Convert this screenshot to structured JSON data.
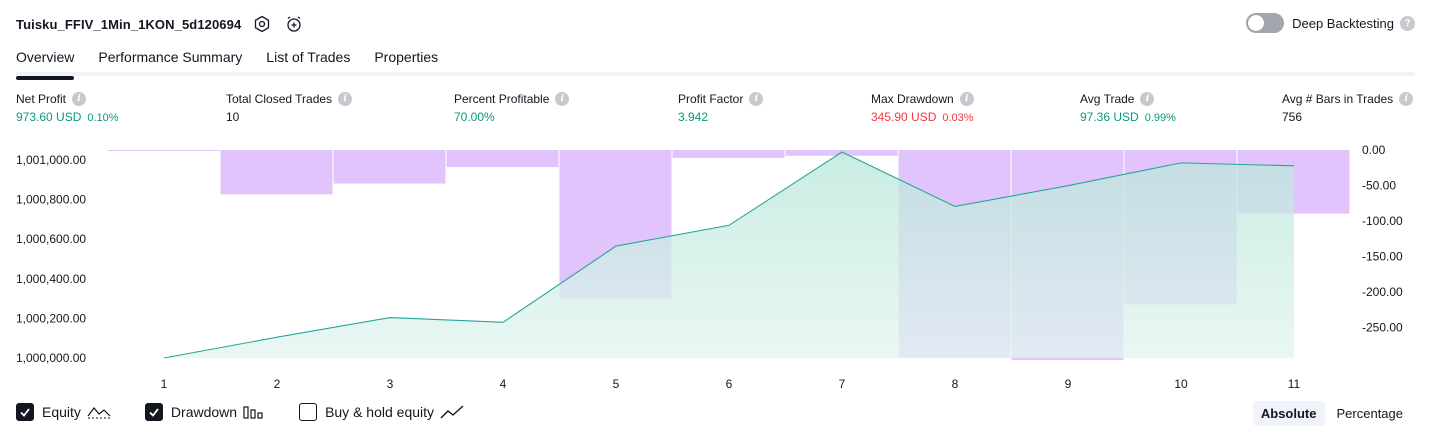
{
  "header": {
    "strategy_name": "Tuisku_FFIV_1Min_1KON_5d120694",
    "settings_icon": "hexagon-settings-icon",
    "alert_icon": "alarm-clock-add-icon",
    "deep_backtesting_label": "Deep Backtesting",
    "deep_backtesting_enabled": false
  },
  "tabs": [
    {
      "label": "Overview",
      "active": true
    },
    {
      "label": "Performance Summary",
      "active": false
    },
    {
      "label": "List of Trades",
      "active": false
    },
    {
      "label": "Properties",
      "active": false
    }
  ],
  "metrics": [
    {
      "label": "Net Profit",
      "value": "973.60 USD",
      "sub": "0.10%",
      "color": "green"
    },
    {
      "label": "Total Closed Trades",
      "value": "10",
      "sub": "",
      "color": "dark"
    },
    {
      "label": "Percent Profitable",
      "value": "70.00%",
      "sub": "",
      "color": "green"
    },
    {
      "label": "Profit Factor",
      "value": "3.942",
      "sub": "",
      "color": "green"
    },
    {
      "label": "Max Drawdown",
      "value": "345.90 USD",
      "sub": "0.03%",
      "color": "red"
    },
    {
      "label": "Avg Trade",
      "value": "97.36 USD",
      "sub": "0.99%",
      "color": "green"
    },
    {
      "label": "Avg # Bars in Trades",
      "value": "756",
      "sub": "",
      "color": "dark"
    }
  ],
  "colors": {
    "green": "#089981",
    "red": "#f23645",
    "equity_line": "#26a69a",
    "equity_fill": "#c9ebe3",
    "drawdown_fill": "#e1c4fb"
  },
  "chart_data": {
    "type": "area",
    "x": [
      1,
      2,
      3,
      4,
      5,
      6,
      7,
      8,
      9,
      10,
      11
    ],
    "series": [
      {
        "name": "Equity",
        "axis": "left",
        "values": [
          1000000.0,
          1000105.0,
          1000204.0,
          1000180.0,
          1000565.0,
          1000670.0,
          1001040.0,
          1000765.0,
          1000870.0,
          1000985.0,
          1000970.0
        ]
      },
      {
        "name": "Drawdown",
        "axis": "right",
        "type": "bar",
        "values": [
          0.0,
          -62.0,
          -47.0,
          -24.0,
          -208.0,
          -11.0,
          -8.0,
          -291.0,
          -294.0,
          -216.0,
          -89.0
        ]
      }
    ],
    "left_ticks": [
      "1,001,000.00",
      "1,000,800.00",
      "1,000,600.00",
      "1,000,400.00",
      "1,000,200.00",
      "1,000,000.00"
    ],
    "left_tick_values": [
      1001000,
      1000800,
      1000600,
      1000400,
      1000200,
      1000000
    ],
    "right_ticks": [
      "0.00",
      "-50.00",
      "-100.00",
      "-150.00",
      "-200.00",
      "-250.00"
    ],
    "right_tick_values": [
      0,
      -50,
      -100,
      -150,
      -200,
      -250
    ],
    "left_ylim": [
      1000000,
      1001050
    ],
    "right_ylim": [
      -294,
      0
    ],
    "grid": false
  },
  "legend": {
    "items": [
      {
        "label": "Equity",
        "checked": true,
        "icon": "equity-line-icon"
      },
      {
        "label": "Drawdown",
        "checked": true,
        "icon": "drawdown-bars-icon"
      },
      {
        "label": "Buy & hold equity",
        "checked": false,
        "icon": "buy-hold-line-icon"
      }
    ],
    "modes": [
      {
        "label": "Absolute",
        "active": true
      },
      {
        "label": "Percentage",
        "active": false
      }
    ]
  }
}
